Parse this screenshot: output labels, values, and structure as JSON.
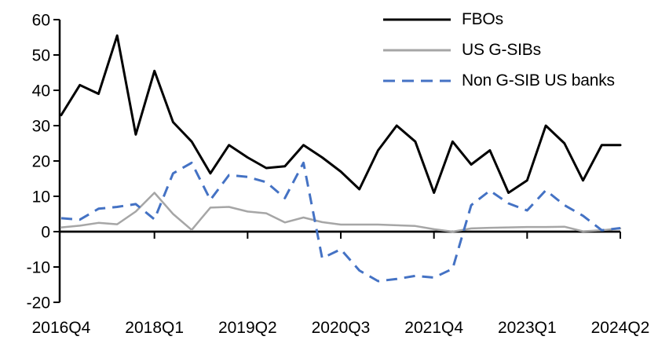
{
  "chart_data": {
    "type": "line",
    "title": "",
    "xlabel": "",
    "ylabel": "",
    "grid": false,
    "background_color": "#ffffff",
    "axis_color": "#000000",
    "ylim": [
      -20,
      60
    ],
    "y_ticks": [
      60,
      50,
      40,
      30,
      20,
      10,
      0,
      -10,
      -20
    ],
    "x": [
      "2016Q4",
      "2017Q1",
      "2017Q2",
      "2017Q3",
      "2017Q4",
      "2018Q1",
      "2018Q2",
      "2018Q3",
      "2018Q4",
      "2019Q1",
      "2019Q2",
      "2019Q3",
      "2019Q4",
      "2020Q1",
      "2020Q2",
      "2020Q3",
      "2020Q4",
      "2021Q1",
      "2021Q2",
      "2021Q3",
      "2021Q4",
      "2022Q1",
      "2022Q2",
      "2022Q3",
      "2022Q4",
      "2023Q1",
      "2023Q2",
      "2023Q3",
      "2023Q4",
      "2024Q1",
      "2024Q2"
    ],
    "x_tick_labels": [
      "2016Q4",
      "2018Q1",
      "2019Q2",
      "2020Q3",
      "2021Q4",
      "2023Q1",
      "2024Q2"
    ],
    "legend_position": "top-right",
    "series": [
      {
        "name": "FBOs",
        "color": "#000000",
        "style": "solid",
        "values": [
          33,
          41.5,
          39,
          55.5,
          27.5,
          45.5,
          31,
          25.5,
          16.5,
          24.5,
          21,
          18,
          18.5,
          24.5,
          21,
          17,
          12,
          23,
          30,
          25.5,
          11,
          25.5,
          19,
          23,
          11,
          14.5,
          30,
          25,
          14.5,
          24.5,
          24.5
        ]
      },
      {
        "name": "US G-SIBs",
        "color": "#a6a6a6",
        "style": "solid",
        "values": [
          1.2,
          1.7,
          2.5,
          2.1,
          5.7,
          11,
          5,
          0.5,
          6.8,
          7,
          5.7,
          5.2,
          2.6,
          4,
          2.7,
          2,
          2,
          2,
          1.8,
          1.6,
          0.7,
          0,
          0.9,
          1.1,
          1.2,
          1.3,
          1.3,
          1.4,
          0.1,
          0.4,
          0.9
        ]
      },
      {
        "name": "Non G-SIB US banks",
        "color": "#4472c4",
        "style": "dashed",
        "values": [
          3.8,
          3.4,
          6.5,
          7,
          7.8,
          3.5,
          16.5,
          19.5,
          9,
          16,
          15.5,
          14,
          9.5,
          19.5,
          -7.5,
          -5,
          -11,
          -14,
          -13.4,
          -12.5,
          -13,
          -10.5,
          7.5,
          11.6,
          8,
          6,
          11.7,
          7.5,
          4.5,
          0.4,
          1
        ]
      }
    ]
  }
}
